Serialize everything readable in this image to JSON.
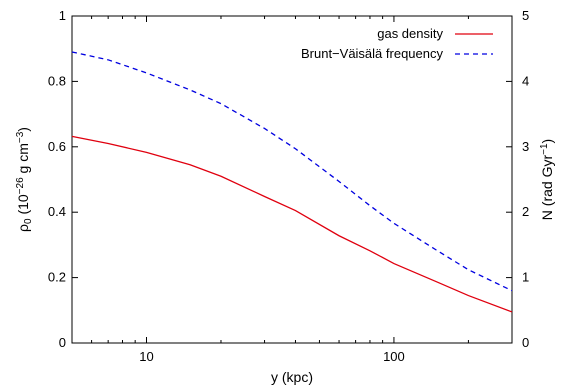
{
  "chart_data": {
    "type": "line",
    "xlabel": "y (kpc)",
    "ylabel_left": {
      "main": "ρ",
      "sub": "0",
      "mid": " (10",
      "sup": "−26",
      "unit": " g cm",
      "unit_sup": "−3",
      "end": ")"
    },
    "ylabel_right": {
      "main": "N (rad Gyr",
      "sup": "−1",
      "end": ")"
    },
    "x_scale": "log",
    "xlim": [
      5,
      300
    ],
    "xticks": [
      10,
      100
    ],
    "xtick_labels": [
      "10",
      "100"
    ],
    "ylim_left": [
      0,
      1
    ],
    "yticks_left": [
      0,
      0.2,
      0.4,
      0.6,
      0.8,
      1
    ],
    "ytick_labels_left": [
      "0",
      "0.2",
      "0.4",
      "0.6",
      "0.8",
      "1"
    ],
    "ylim_right": [
      0,
      5
    ],
    "yticks_right": [
      0,
      1,
      2,
      3,
      4,
      5
    ],
    "ytick_labels_right": [
      "0",
      "1",
      "2",
      "3",
      "4",
      "5"
    ],
    "grid": false,
    "legend_position": "top-right",
    "series": [
      {
        "name": "gas density",
        "axis": "left",
        "color": "#e0000f",
        "style": "solid",
        "x": [
          5,
          7,
          10,
          15,
          20,
          30,
          40,
          60,
          80,
          100,
          150,
          200,
          300
        ],
        "y": [
          0.632,
          0.61,
          0.583,
          0.545,
          0.51,
          0.448,
          0.405,
          0.328,
          0.282,
          0.243,
          0.186,
          0.145,
          0.095
        ]
      },
      {
        "name": "Brunt−Väisälä frequency",
        "axis": "right",
        "color": "#0000e0",
        "style": "dashed",
        "x": [
          5,
          7,
          10,
          15,
          20,
          30,
          40,
          60,
          80,
          100,
          150,
          200,
          300
        ],
        "y": [
          4.45,
          4.33,
          4.13,
          3.87,
          3.66,
          3.28,
          2.97,
          2.47,
          2.1,
          1.83,
          1.41,
          1.12,
          0.8
        ]
      }
    ]
  }
}
